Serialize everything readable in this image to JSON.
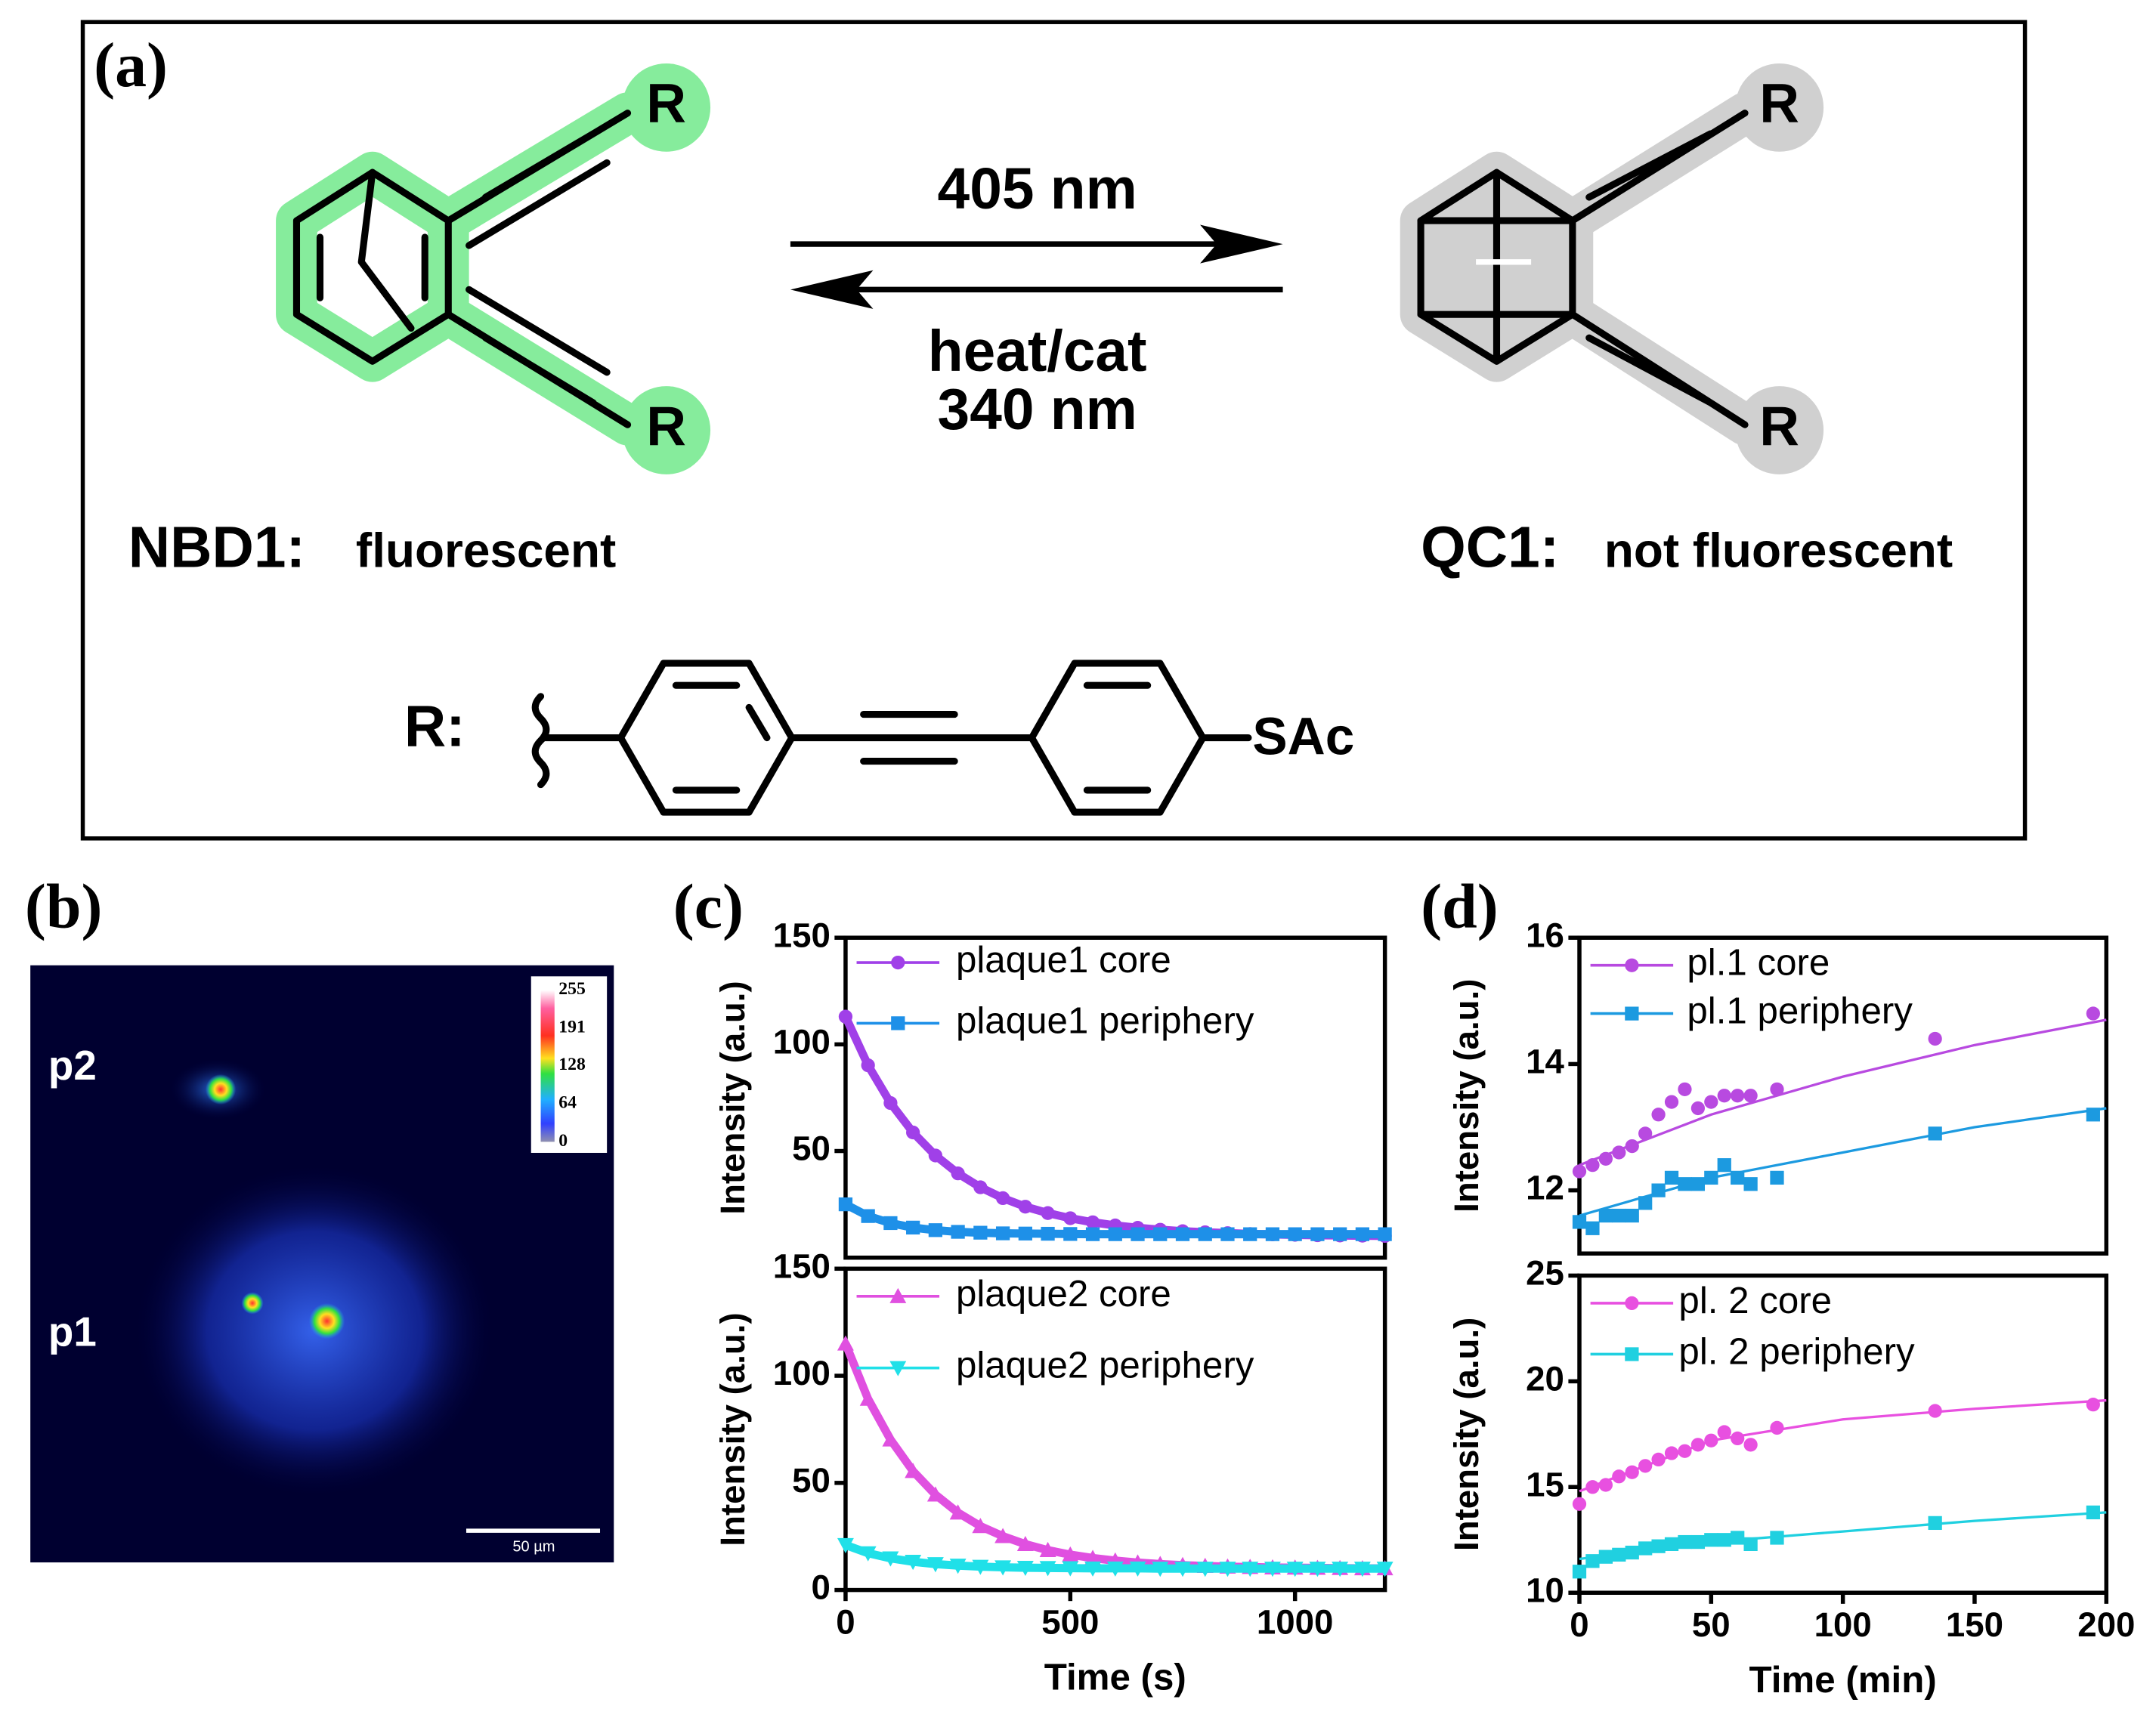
{
  "figure": {
    "panel_a": {
      "label": "(a)",
      "forward": "405 nm",
      "reverse": [
        "heat/cat",
        "340 nm"
      ],
      "left": {
        "name": "NBD1:",
        "property": "fluorescent"
      },
      "right": {
        "name": "QC1:",
        "property": "not fluorescent"
      },
      "substituent": "R",
      "r_label": "R:",
      "terminal": "SAc"
    },
    "panel_b": {
      "label": "(b)",
      "regions": [
        "p2",
        "p1"
      ],
      "colorbar_ticks": [
        255,
        191,
        128,
        64,
        0
      ],
      "scale_bar": "50 µm"
    },
    "panel_c_label": "(c)",
    "panel_d_label": "(d)"
  },
  "chart_data": [
    {
      "type": "line",
      "ylabel": "Intensity (a.u.)",
      "xlim": [
        0,
        1200
      ],
      "ylim": [
        0,
        150
      ],
      "yticks": [
        50,
        100,
        150
      ],
      "x": [
        0,
        50,
        100,
        150,
        200,
        250,
        300,
        350,
        400,
        450,
        500,
        550,
        600,
        650,
        700,
        750,
        800,
        850,
        900,
        950,
        1000,
        1050,
        1100,
        1150,
        1200
      ],
      "series": [
        {
          "name": "plaque1 core",
          "color": "#a040e8",
          "marker": "circle",
          "values": [
            113,
            90.2,
            72.5,
            58.7,
            47.9,
            39.5,
            33,
            27.9,
            23.9,
            20.9,
            18.5,
            16.6,
            15.1,
            14,
            13.1,
            12.4,
            11.9,
            11.5,
            11.1,
            10.9,
            10.7,
            10.5,
            10.4,
            10.3,
            10.2
          ]
        },
        {
          "name": "plaque1 periphery",
          "color": "#1e90e8",
          "marker": "square",
          "values": [
            25,
            19.5,
            16.2,
            14.1,
            12.9,
            12.1,
            11.7,
            11.4,
            11.3,
            11.2,
            11.1,
            11,
            11,
            11,
            11,
            11,
            11,
            11,
            11,
            11,
            11,
            11,
            11,
            11,
            11
          ]
        }
      ]
    },
    {
      "type": "line",
      "ylabel": "Intensity (a.u.)",
      "xlabel": "Time (s)",
      "xlim": [
        0,
        1200
      ],
      "ylim": [
        0,
        150
      ],
      "yticks": [
        0,
        50,
        100,
        150
      ],
      "xticks": [
        0,
        500,
        1000
      ],
      "x": [
        0,
        50,
        100,
        150,
        200,
        250,
        300,
        350,
        400,
        450,
        500,
        550,
        600,
        650,
        700,
        750,
        800,
        850,
        900,
        950,
        1000,
        1050,
        1100,
        1150,
        1200
      ],
      "series": [
        {
          "name": "plaque2 core",
          "color": "#e050e0",
          "marker": "triangle",
          "values": [
            115,
            89.2,
            70.2,
            55.5,
            44.5,
            36.1,
            29.8,
            25.1,
            21.4,
            18.6,
            16.5,
            14.9,
            13.7,
            12.8,
            12.1,
            11.6,
            11.2,
            10.9,
            10.7,
            10.5,
            10.4,
            10.3,
            10.2,
            10.1,
            10.1
          ]
        },
        {
          "name": "plaque2 periphery",
          "color": "#20e0e8",
          "marker": "triangle-down",
          "values": [
            21,
            17.2,
            14.8,
            13.2,
            12.1,
            11.4,
            10.9,
            10.6,
            10.4,
            10.3,
            10.2,
            10.1,
            10.1,
            10.1,
            10,
            10,
            10,
            10,
            10,
            10,
            10,
            10,
            10,
            10,
            10
          ]
        }
      ]
    },
    {
      "type": "scatter",
      "ylabel": "Intensity (a.u.)",
      "xlim": [
        0,
        200
      ],
      "ylim": [
        11,
        16
      ],
      "yticks": [
        12,
        14,
        16
      ],
      "x": [
        0,
        5,
        10,
        15,
        20,
        25,
        30,
        35,
        40,
        45,
        50,
        55,
        60,
        65,
        75,
        135,
        195
      ],
      "fit_x": [
        0,
        50,
        100,
        150,
        200
      ],
      "series": [
        {
          "name": "pl.1 core",
          "color": "#b84ae0",
          "marker": "circle",
          "values": [
            12.3,
            12.4,
            12.5,
            12.6,
            12.7,
            12.9,
            13.2,
            13.4,
            13.6,
            13.3,
            13.4,
            13.5,
            13.5,
            13.5,
            13.6,
            14.4,
            14.8
          ],
          "fit_values": [
            12.4,
            13.2,
            13.8,
            14.3,
            14.7
          ]
        },
        {
          "name": "pl.1 periphery",
          "color": "#1c9ae0",
          "marker": "square",
          "values": [
            11.5,
            11.4,
            11.6,
            11.6,
            11.6,
            11.8,
            12,
            12.2,
            12.1,
            12.1,
            12.2,
            12.4,
            12.2,
            12.1,
            12.2,
            12.9,
            13.2
          ],
          "fit_values": [
            11.6,
            12.2,
            12.6,
            13,
            13.3
          ]
        }
      ]
    },
    {
      "type": "scatter",
      "ylabel": "Intensity (a.u.)",
      "xlabel": "Time (min)",
      "xlim": [
        0,
        200
      ],
      "ylim": [
        10,
        25
      ],
      "yticks": [
        10,
        15,
        20,
        25
      ],
      "xticks": [
        0,
        50,
        100,
        150,
        200
      ],
      "x": [
        0,
        5,
        10,
        15,
        20,
        25,
        30,
        35,
        40,
        45,
        50,
        55,
        60,
        65,
        75,
        135,
        195
      ],
      "fit_x": [
        0,
        50,
        100,
        150,
        200
      ],
      "series": [
        {
          "name": "pl. 2 core",
          "color": "#e850e0",
          "marker": "circle",
          "values": [
            14.2,
            15,
            15.1,
            15.5,
            15.7,
            16,
            16.3,
            16.6,
            16.7,
            17,
            17.2,
            17.6,
            17.3,
            17,
            17.8,
            18.6,
            18.9
          ],
          "fit_values": [
            14.8,
            17.2,
            18.2,
            18.7,
            19.1
          ]
        },
        {
          "name": "pl. 2 periphery",
          "color": "#20d0e0",
          "marker": "square",
          "values": [
            11,
            11.5,
            11.7,
            11.8,
            11.9,
            12.1,
            12.2,
            12.3,
            12.4,
            12.4,
            12.5,
            12.5,
            12.6,
            12.3,
            12.6,
            13.3,
            13.8
          ],
          "fit_values": [
            11.6,
            12.4,
            12.9,
            13.4,
            13.8
          ]
        }
      ]
    }
  ]
}
